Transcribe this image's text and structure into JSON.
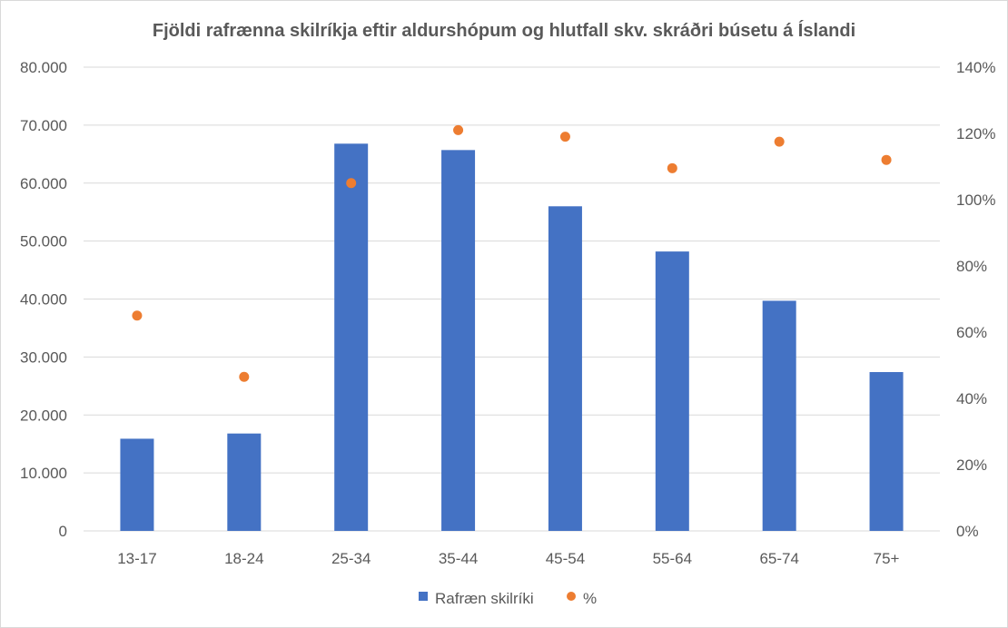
{
  "chart_data": {
    "type": "bar",
    "title": "Fjöldi rafrænna skilríkja eftir aldurshópum og hlutfall skv. skráðri búsetu á Íslandi",
    "categories": [
      "13-17",
      "18-24",
      "25-34",
      "35-44",
      "45-54",
      "55-64",
      "65-74",
      "75+"
    ],
    "series": [
      {
        "name": "Rafræn skilríki",
        "type": "bar",
        "axis": "left",
        "color": "#4472c4",
        "values": [
          15900,
          16800,
          66800,
          65700,
          56000,
          48200,
          39700,
          27400
        ]
      },
      {
        "name": "%",
        "type": "scatter",
        "axis": "right",
        "color": "#ed7d31",
        "values": [
          65,
          46.5,
          105,
          121,
          119,
          109.5,
          117.5,
          112
        ]
      }
    ],
    "y_left": {
      "min": 0,
      "max": 80000,
      "tick_labels": [
        "0",
        "10.000",
        "20.000",
        "30.000",
        "40.000",
        "50.000",
        "60.000",
        "70.000",
        "80.000"
      ]
    },
    "y_right": {
      "min": 0,
      "max": 140,
      "tick_labels": [
        "0%",
        "20%",
        "40%",
        "60%",
        "80%",
        "100%",
        "120%",
        "140%"
      ]
    },
    "grid": true,
    "legend_position": "bottom"
  }
}
